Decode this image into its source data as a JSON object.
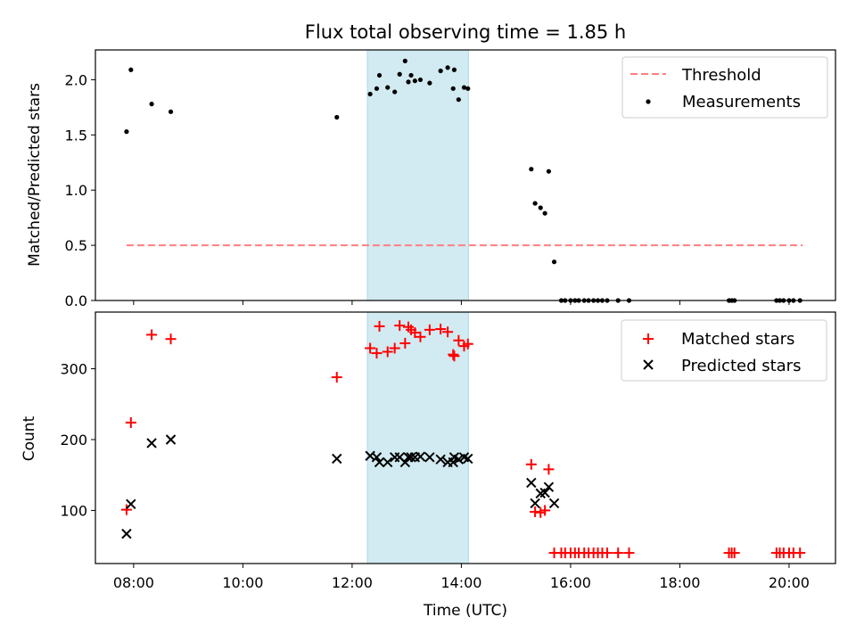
{
  "figure_title": "Flux total observing time = 1.85 h",
  "chart_data": [
    {
      "type": "scatter",
      "title": "Flux total observing time = 1.85 h",
      "xlabel": "",
      "ylabel": "Matched/Predicted stars",
      "xlim": [
        7.3,
        20.85
      ],
      "ylim": [
        0,
        2.27
      ],
      "yticks": [
        0.0,
        0.5,
        1.0,
        1.5,
        2.0
      ],
      "ytick_labels": [
        "0.0",
        "0.5",
        "1.0",
        "1.5",
        "2.0"
      ],
      "shaded_region": {
        "x": [
          12.28,
          14.13
        ],
        "color": "#add8e6"
      },
      "legend": {
        "position": "upper right",
        "entries": [
          "Threshold",
          "Measurements"
        ]
      },
      "series": [
        {
          "name": "Threshold",
          "style": "dashed-line",
          "color": "#ff7f7f",
          "x": [
            7.87,
            20.25
          ],
          "y": [
            0.5,
            0.5
          ]
        },
        {
          "name": "Measurements",
          "style": "dot",
          "color": "#000000",
          "x": [
            7.87,
            7.95,
            8.33,
            8.68,
            11.72,
            12.33,
            12.45,
            12.5,
            12.65,
            12.78,
            12.87,
            12.97,
            13.03,
            13.08,
            13.15,
            13.25,
            13.42,
            13.62,
            13.75,
            13.85,
            13.87,
            13.95,
            14.05,
            14.12,
            15.28,
            15.35,
            15.45,
            15.53,
            15.6,
            15.7,
            15.83,
            15.9,
            16.0,
            16.08,
            16.15,
            16.25,
            16.33,
            16.42,
            16.5,
            16.58,
            16.67,
            16.87,
            17.07,
            18.9,
            18.95,
            19.0,
            19.77,
            19.83,
            19.9,
            20.0,
            20.08,
            20.2
          ],
          "y": [
            1.53,
            2.09,
            1.78,
            1.71,
            1.66,
            1.87,
            1.92,
            2.04,
            1.93,
            1.89,
            2.05,
            2.17,
            1.98,
            2.04,
            1.99,
            2.0,
            1.97,
            2.08,
            2.11,
            1.92,
            2.09,
            1.82,
            1.93,
            1.92,
            1.19,
            0.88,
            0.84,
            0.79,
            1.17,
            0.35,
            0.0,
            0.0,
            0.0,
            0.0,
            0.0,
            0.0,
            0.0,
            0.0,
            0.0,
            0.0,
            0.0,
            0.0,
            0.0,
            0.0,
            0.0,
            0.0,
            0.0,
            0.0,
            0.0,
            0.0,
            0.0,
            0.0
          ]
        }
      ]
    },
    {
      "type": "scatter",
      "title": "",
      "xlabel": "Time (UTC)",
      "ylabel": "Count",
      "xlim": [
        7.3,
        20.85
      ],
      "ylim": [
        25,
        380
      ],
      "xticks": [
        8,
        10,
        12,
        14,
        16,
        18,
        20
      ],
      "xtick_labels": [
        "08:00",
        "10:00",
        "12:00",
        "14:00",
        "16:00",
        "18:00",
        "20:00"
      ],
      "yticks": [
        100,
        200,
        300
      ],
      "ytick_labels": [
        "100",
        "200",
        "300"
      ],
      "shaded_region": {
        "x": [
          12.28,
          14.13
        ],
        "color": "#add8e6"
      },
      "legend": {
        "position": "upper right",
        "entries": [
          "Matched stars",
          "Predicted stars"
        ]
      },
      "series": [
        {
          "name": "Matched stars",
          "style": "plus",
          "color": "#ff0000",
          "x": [
            7.87,
            7.95,
            8.33,
            8.68,
            11.72,
            12.33,
            12.45,
            12.5,
            12.65,
            12.78,
            12.87,
            12.97,
            13.03,
            13.08,
            13.15,
            13.25,
            13.42,
            13.62,
            13.75,
            13.85,
            13.87,
            13.95,
            14.05,
            14.12,
            15.28,
            15.35,
            15.45,
            15.53,
            15.6,
            15.7,
            15.83,
            15.9,
            16.0,
            16.08,
            16.15,
            16.25,
            16.33,
            16.42,
            16.5,
            16.58,
            16.67,
            16.87,
            17.07,
            18.9,
            18.95,
            19.0,
            19.77,
            19.83,
            19.9,
            20.0,
            20.08,
            20.2
          ],
          "y": [
            101,
            224,
            348,
            342,
            288,
            329,
            322,
            360,
            324,
            329,
            361,
            336,
            359,
            355,
            351,
            345,
            355,
            356,
            352,
            320,
            318,
            340,
            332,
            335,
            165,
            98,
            97,
            100,
            158,
            40,
            40,
            40,
            40,
            40,
            40,
            40,
            40,
            40,
            40,
            40,
            40,
            40,
            40,
            40,
            40,
            40,
            40,
            40,
            40,
            40,
            40,
            40
          ]
        },
        {
          "name": "Predicted stars",
          "style": "x",
          "color": "#000000",
          "x": [
            7.87,
            7.95,
            8.33,
            8.68,
            11.72,
            12.33,
            12.45,
            12.5,
            12.65,
            12.78,
            12.87,
            12.97,
            13.03,
            13.08,
            13.15,
            13.25,
            13.42,
            13.62,
            13.75,
            13.85,
            13.87,
            13.95,
            14.05,
            14.12,
            15.28,
            15.35,
            15.45,
            15.53,
            15.6,
            15.7
          ],
          "y": [
            67,
            109,
            195,
            200,
            173,
            177,
            175,
            168,
            168,
            175,
            175,
            168,
            175,
            175,
            175,
            176,
            175,
            172,
            168,
            168,
            175,
            172,
            175,
            173,
            139,
            110,
            124,
            125,
            133,
            110
          ]
        }
      ]
    }
  ]
}
